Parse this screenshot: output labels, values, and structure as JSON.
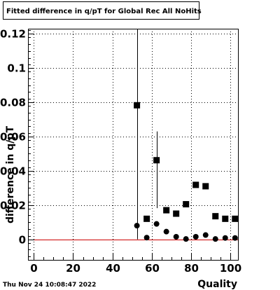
{
  "canvas": {
    "date_stamp": "Thu Nov 24 10:08:47 2022"
  },
  "colors": {
    "background": "#ffffff",
    "axes": "#000000",
    "zero_line": "#cc0000",
    "markers": "#000000"
  },
  "chart_data": {
    "type": "scatter",
    "title": "Fitted difference in q/pT for Global Rec All NoHits",
    "xlabel": "Quality",
    "ylabel": "difference in q/pT",
    "xlim": [
      -3,
      104
    ],
    "ylim": [
      -0.012,
      0.123
    ],
    "x_ticks": [
      0,
      20,
      40,
      60,
      80,
      100
    ],
    "y_ticks": [
      0,
      0.02,
      0.04,
      0.06,
      0.08,
      0.1,
      0.12
    ],
    "x_tick_labels": [
      "0",
      "20",
      "40",
      "60",
      "80",
      "100"
    ],
    "y_tick_labels": [
      "0",
      "0.02",
      "0.04",
      "0.06",
      "0.08",
      "0.1",
      "0.12"
    ],
    "grid": true,
    "reference_line": {
      "y": 0,
      "color": "#cc0000"
    },
    "series": [
      {
        "marker": "square",
        "points": [
          {
            "x": 52.5,
            "y": 0.0783,
            "err_low": 0.0783,
            "err_high": 0.123
          },
          {
            "x": 57.5,
            "y": 0.012
          },
          {
            "x": 62.5,
            "y": 0.0462,
            "err_low": 0.028,
            "err_high": 0.063
          },
          {
            "x": 67.5,
            "y": 0.017
          },
          {
            "x": 72.5,
            "y": 0.015
          },
          {
            "x": 77.5,
            "y": 0.0205
          },
          {
            "x": 82.5,
            "y": 0.0318
          },
          {
            "x": 87.5,
            "y": 0.031
          },
          {
            "x": 92.5,
            "y": 0.0135
          },
          {
            "x": 97.5,
            "y": 0.012
          },
          {
            "x": 102.5,
            "y": 0.012
          }
        ]
      },
      {
        "marker": "circle",
        "points": [
          {
            "x": 52.5,
            "y": 0.008
          },
          {
            "x": 57.5,
            "y": 0.001
          },
          {
            "x": 62.5,
            "y": 0.009
          },
          {
            "x": 67.5,
            "y": 0.0045
          },
          {
            "x": 72.5,
            "y": 0.0015
          },
          {
            "x": 77.5,
            "y": 0.0002
          },
          {
            "x": 82.5,
            "y": 0.0015
          },
          {
            "x": 87.5,
            "y": 0.0025
          },
          {
            "x": 92.5,
            "y": 0.0002
          },
          {
            "x": 97.5,
            "y": 0.0008
          },
          {
            "x": 102.5,
            "y": 0.0008
          }
        ]
      }
    ]
  }
}
